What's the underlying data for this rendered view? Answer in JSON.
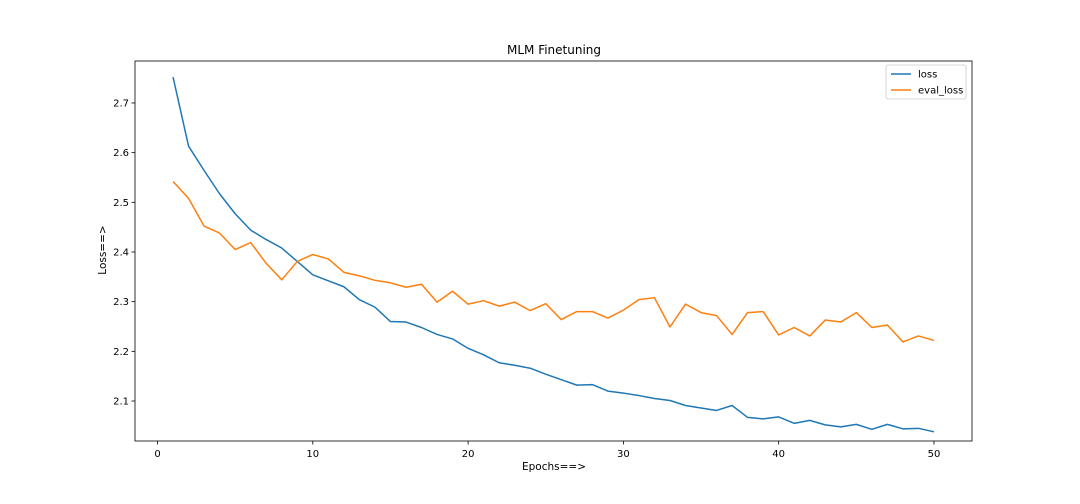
{
  "chart_data": {
    "type": "line",
    "title": "MLM Finetuning",
    "xlabel": "Epochs==>",
    "ylabel": "Loss==>",
    "xlim": [
      -1.45,
      52.45
    ],
    "ylim": [
      2.0195,
      2.7845
    ],
    "xticks": [
      0,
      10,
      20,
      30,
      40,
      50
    ],
    "yticks": [
      2.1,
      2.2,
      2.3,
      2.4,
      2.5,
      2.6,
      2.7
    ],
    "legend_position": "top-right",
    "grid": false,
    "x": [
      1,
      2,
      3,
      4,
      5,
      6,
      7,
      8,
      9,
      10,
      11,
      12,
      13,
      14,
      15,
      16,
      17,
      18,
      19,
      20,
      21,
      22,
      23,
      24,
      25,
      26,
      27,
      28,
      29,
      30,
      31,
      32,
      33,
      34,
      35,
      36,
      37,
      38,
      39,
      40,
      41,
      42,
      43,
      44,
      45,
      46,
      47,
      48,
      49,
      50
    ],
    "series": [
      {
        "name": "loss",
        "color": "#1f77b4",
        "values": [
          2.752,
          2.613,
          2.564,
          2.517,
          2.477,
          2.444,
          2.425,
          2.408,
          2.381,
          2.354,
          2.342,
          2.33,
          2.304,
          2.289,
          2.26,
          2.259,
          2.248,
          2.234,
          2.225,
          2.206,
          2.193,
          2.177,
          2.172,
          2.166,
          2.154,
          2.143,
          2.132,
          2.133,
          2.12,
          2.116,
          2.111,
          2.105,
          2.101,
          2.091,
          2.086,
          2.081,
          2.091,
          2.067,
          2.064,
          2.068,
          2.055,
          2.061,
          2.052,
          2.048,
          2.053,
          2.043,
          2.053,
          2.044,
          2.045,
          2.038
        ]
      },
      {
        "name": "eval_loss",
        "color": "#ff7f0e",
        "values": [
          2.542,
          2.508,
          2.452,
          2.438,
          2.405,
          2.419,
          2.377,
          2.344,
          2.381,
          2.395,
          2.386,
          2.359,
          2.352,
          2.343,
          2.338,
          2.329,
          2.335,
          2.299,
          2.321,
          2.295,
          2.302,
          2.291,
          2.299,
          2.282,
          2.296,
          2.264,
          2.28,
          2.28,
          2.267,
          2.283,
          2.304,
          2.308,
          2.249,
          2.295,
          2.278,
          2.272,
          2.234,
          2.278,
          2.28,
          2.233,
          2.248,
          2.231,
          2.263,
          2.259,
          2.278,
          2.248,
          2.253,
          2.219,
          2.231,
          2.222
        ]
      }
    ]
  }
}
